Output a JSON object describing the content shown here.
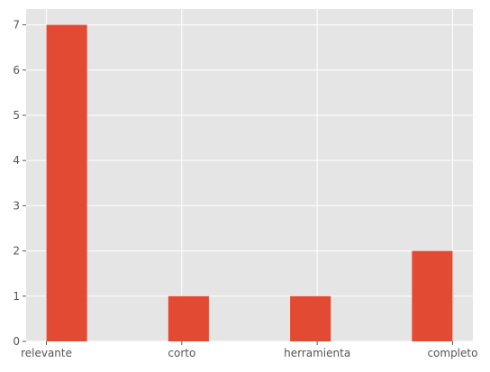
{
  "chart_data": {
    "type": "bar",
    "style": "ggplot",
    "categories": [
      "relevante",
      "corto",
      "herramienta",
      "completo"
    ],
    "values": [
      7,
      1,
      1,
      2
    ],
    "ylim": [
      0,
      7.35
    ],
    "yticks": [
      "0",
      "1",
      "2",
      "3",
      "4",
      "5",
      "6",
      "7"
    ],
    "title": "",
    "xlabel": "",
    "ylabel": "",
    "grid": true,
    "colors": {
      "bar": "#E24A33",
      "plot_background": "#E5E5E5",
      "grid": "#FFFFFF",
      "tick_label": "#555555"
    }
  }
}
